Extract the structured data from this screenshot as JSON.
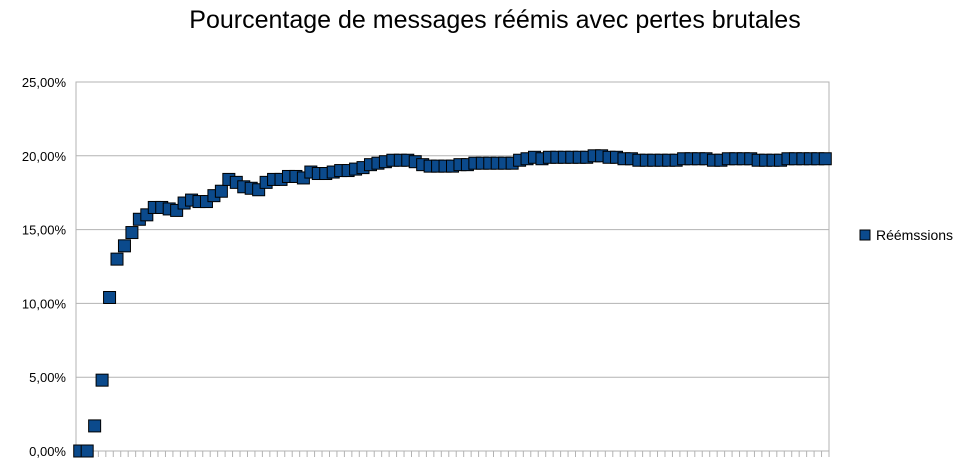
{
  "chart_data": {
    "type": "scatter",
    "title": "Pourcentage de messages réémis avec pertes brutales",
    "xlabel": "",
    "ylabel": "",
    "ylim": [
      0,
      25
    ],
    "yticks": [
      0,
      5,
      10,
      15,
      20,
      25
    ],
    "ytick_labels": [
      "0,00%",
      "5,00%",
      "10,00%",
      "15,00%",
      "20,00%",
      "25,00%"
    ],
    "grid": "horizontal",
    "legend_position": "right",
    "series": [
      {
        "name": "Réémssions",
        "color": "#0b4a8c",
        "marker": "square",
        "values": [
          0,
          0,
          1.7,
          4.8,
          10.4,
          13.0,
          13.9,
          14.8,
          15.7,
          16.0,
          16.5,
          16.5,
          16.4,
          16.3,
          16.8,
          17.0,
          16.9,
          16.9,
          17.3,
          17.6,
          18.4,
          18.2,
          17.9,
          17.8,
          17.7,
          18.2,
          18.4,
          18.4,
          18.6,
          18.6,
          18.5,
          18.9,
          18.8,
          18.8,
          18.9,
          19.0,
          19.0,
          19.1,
          19.2,
          19.4,
          19.5,
          19.6,
          19.7,
          19.7,
          19.7,
          19.6,
          19.4,
          19.3,
          19.3,
          19.3,
          19.3,
          19.4,
          19.4,
          19.5,
          19.5,
          19.5,
          19.5,
          19.5,
          19.5,
          19.7,
          19.8,
          19.9,
          19.8,
          19.9,
          19.9,
          19.9,
          19.9,
          19.9,
          19.9,
          20.0,
          20.0,
          19.9,
          19.9,
          19.8,
          19.8,
          19.7,
          19.7,
          19.7,
          19.7,
          19.7,
          19.7,
          19.8,
          19.8,
          19.8,
          19.8,
          19.7,
          19.7,
          19.8,
          19.8,
          19.8,
          19.8,
          19.7,
          19.7,
          19.7,
          19.7,
          19.8,
          19.8,
          19.8,
          19.8,
          19.8,
          19.8
        ]
      }
    ]
  }
}
